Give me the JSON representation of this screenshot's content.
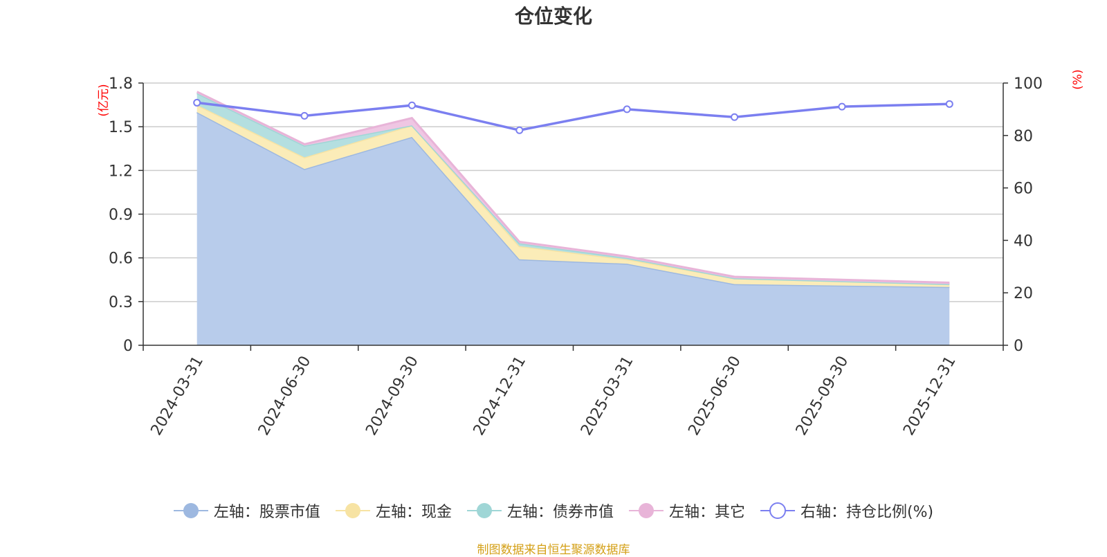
{
  "chart_data": {
    "type": "area",
    "title": "仓位变化",
    "left_axis_unit": "(亿元)",
    "right_axis_unit": "(%)",
    "categories": [
      "2024-03-31",
      "2024-06-30",
      "2024-09-30",
      "2024-12-31",
      "2025-03-31",
      "2025-06-30",
      "2025-09-30",
      "2025-12-31"
    ],
    "left_ylim": [
      0,
      1.8
    ],
    "left_ticks": [
      "0",
      "0.3",
      "0.6",
      "0.9",
      "1.2",
      "1.5",
      "1.8"
    ],
    "right_ylim": [
      0,
      100
    ],
    "right_ticks": [
      "0",
      "20",
      "40",
      "60",
      "80",
      "100"
    ],
    "stacked_series": [
      {
        "name": "左轴：股票市值",
        "color": "#9db8e0",
        "fill": "#b8cceb",
        "values": [
          1.6,
          1.21,
          1.43,
          0.59,
          0.56,
          0.42,
          0.41,
          0.4
        ]
      },
      {
        "name": "左轴：现金",
        "color": "#f7e3a3",
        "fill": "#fbecb8",
        "values": [
          0.05,
          0.08,
          0.08,
          0.09,
          0.03,
          0.04,
          0.03,
          0.02
        ]
      },
      {
        "name": "左轴：债券市值",
        "color": "#9fd6d6",
        "fill": "#b4dfe0",
        "values": [
          0.08,
          0.08,
          0.0,
          0.02,
          0.01,
          0.0,
          0.0,
          0.0
        ]
      },
      {
        "name": "左轴：其它",
        "color": "#e8b4d8",
        "fill": "#efc6e3",
        "values": [
          0.01,
          0.01,
          0.05,
          0.01,
          0.01,
          0.01,
          0.01,
          0.01
        ]
      }
    ],
    "line_series": {
      "name": "右轴：持仓比例(%)",
      "color": "#7b7ff0",
      "values": [
        92.5,
        87.5,
        91.5,
        82.0,
        90.0,
        87.0,
        91.0,
        92.0
      ]
    },
    "grid": true,
    "legend_position": "bottom"
  },
  "colors": {
    "left_unit": "#ff0000",
    "right_unit": "#ff0000",
    "footer": "#d4a017",
    "axis": "#333333",
    "grid": "#cccccc"
  },
  "footer": {
    "text": "制图数据来自恒生聚源数据库"
  }
}
